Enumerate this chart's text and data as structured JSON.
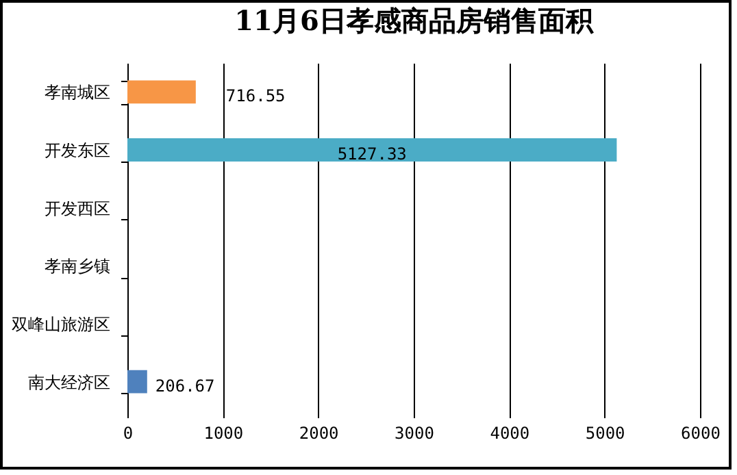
{
  "chart_data": {
    "type": "bar",
    "orientation": "horizontal",
    "title": "11月6日孝感商品房销售面积",
    "categories": [
      "孝南城区",
      "开发东区",
      "开发西区",
      "孝南乡镇",
      "双峰山旅游区",
      "南大经济区"
    ],
    "values": [
      716.55,
      5127.33,
      null,
      null,
      null,
      206.67
    ],
    "colors": [
      "#f79646",
      "#4bacc6",
      null,
      null,
      null,
      "#4f81bd"
    ],
    "value_labels": [
      "716.55",
      "5127.33",
      null,
      null,
      null,
      "206.67"
    ],
    "xlim": [
      0,
      6000
    ],
    "xticks": [
      0,
      1000,
      2000,
      3000,
      4000,
      5000,
      6000
    ],
    "grid": "x"
  }
}
